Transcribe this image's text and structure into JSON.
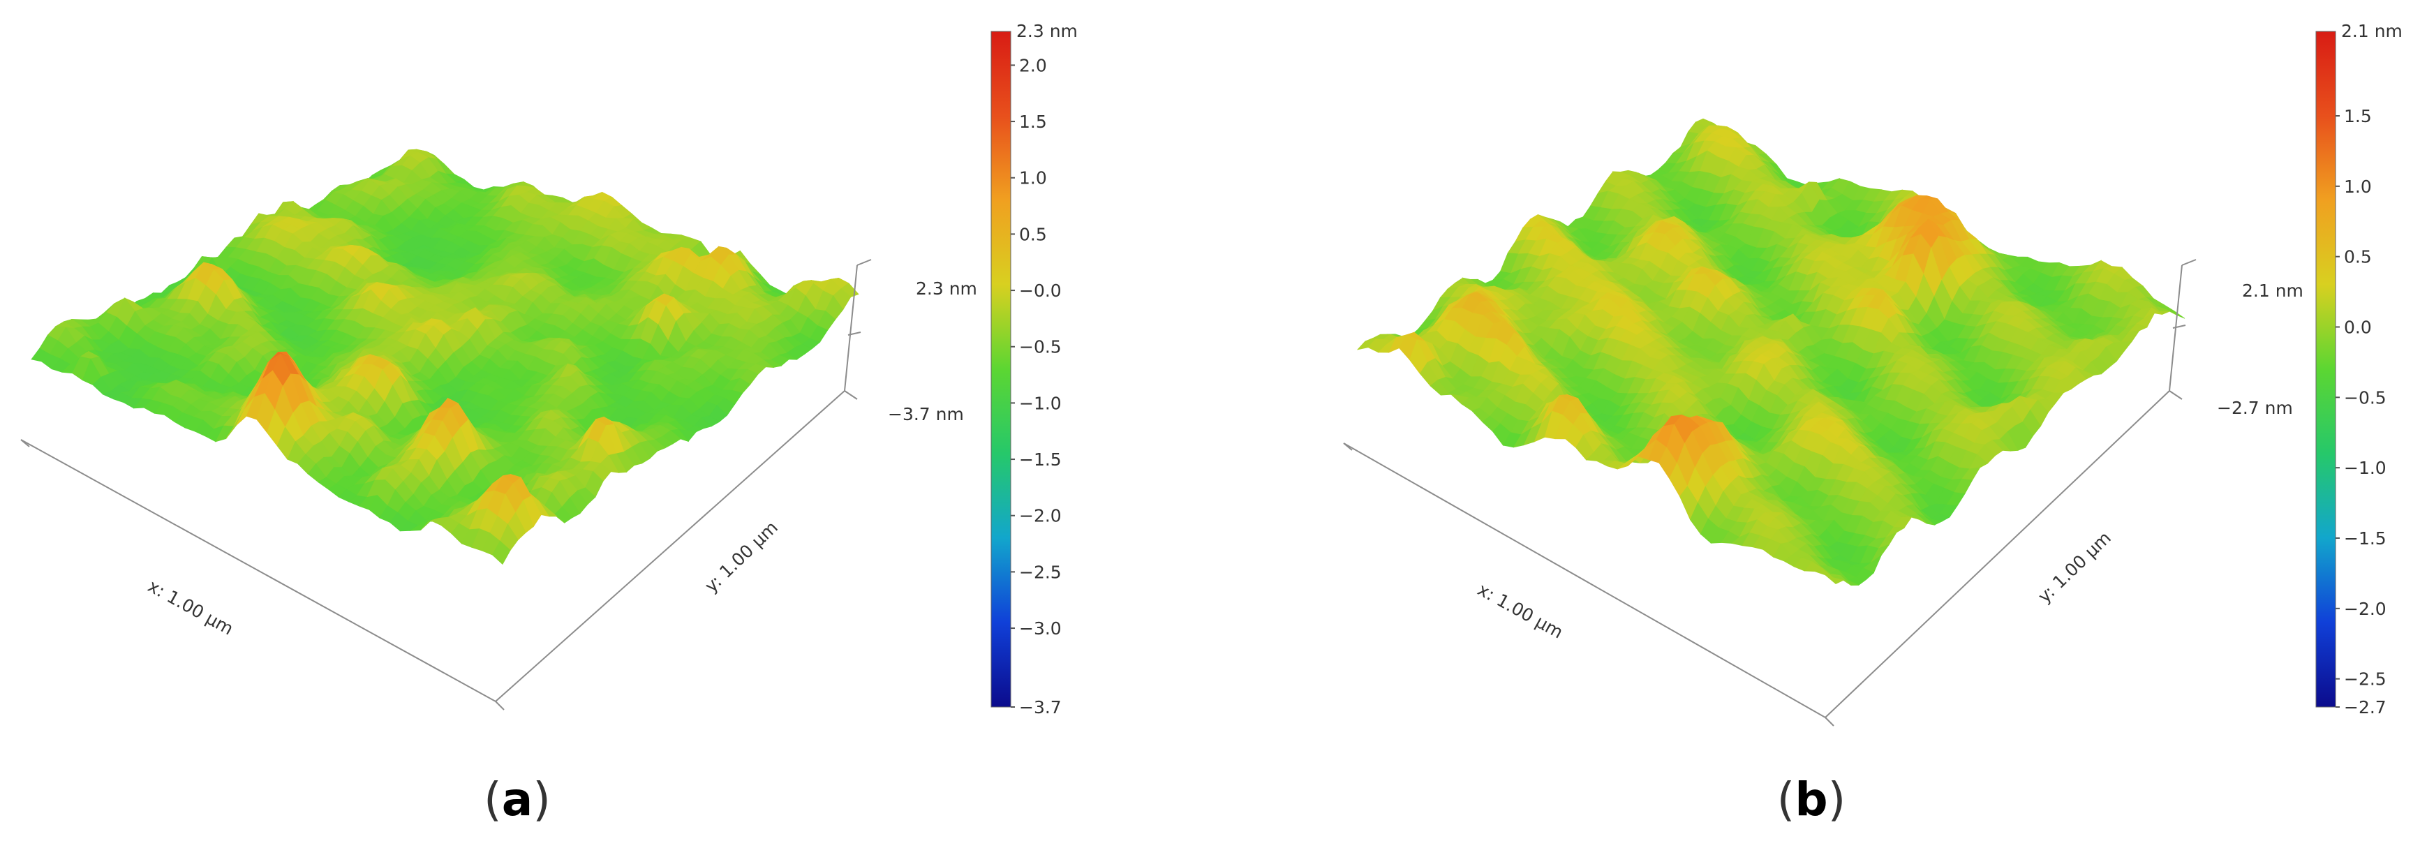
{
  "panels": [
    {
      "id": "a",
      "caption_letter": "a",
      "x_axis_label": "x: 1.00 µm",
      "y_axis_label": "y: 1.00 µm",
      "z_top_label": "2.3 nm",
      "z_bottom_label": "−3.7 nm",
      "colorbar": {
        "min": -3.7,
        "max": 2.3,
        "top_label": "2.3 nm",
        "ticks": [
          {
            "value": 2.0,
            "label": "2.0"
          },
          {
            "value": 1.5,
            "label": "1.5"
          },
          {
            "value": 1.0,
            "label": "1.0"
          },
          {
            "value": 0.5,
            "label": "0.5"
          },
          {
            "value": 0.0,
            "label": "−0.0"
          },
          {
            "value": -0.5,
            "label": "−0.5"
          },
          {
            "value": -1.0,
            "label": "−1.0"
          },
          {
            "value": -1.5,
            "label": "−1.5"
          },
          {
            "value": -2.0,
            "label": "−2.0"
          },
          {
            "value": -2.5,
            "label": "−2.5"
          },
          {
            "value": -3.0,
            "label": "−3.0"
          },
          {
            "value": -3.7,
            "label": "−3.7"
          }
        ]
      }
    },
    {
      "id": "b",
      "caption_letter": "b",
      "x_axis_label": "x: 1.00 µm",
      "y_axis_label": "y: 1.00 µm",
      "z_top_label": "2.1 nm",
      "z_bottom_label": "−2.7 nm",
      "colorbar": {
        "min": -2.7,
        "max": 2.1,
        "top_label": "2.1 nm",
        "ticks": [
          {
            "value": 1.5,
            "label": "1.5"
          },
          {
            "value": 1.0,
            "label": "1.0"
          },
          {
            "value": 0.5,
            "label": "0.5"
          },
          {
            "value": 0.0,
            "label": "0.0"
          },
          {
            "value": -0.5,
            "label": "−0.5"
          },
          {
            "value": -1.0,
            "label": "−1.0"
          },
          {
            "value": -1.5,
            "label": "−1.5"
          },
          {
            "value": -2.0,
            "label": "−2.0"
          },
          {
            "value": -2.5,
            "label": "−2.5"
          },
          {
            "value": -2.7,
            "label": "−2.7"
          }
        ]
      }
    }
  ],
  "colormap": [
    "#0b0b8c",
    "#1040d8",
    "#12a6cc",
    "#26c86a",
    "#5cd632",
    "#d8d020",
    "#f0a020",
    "#e8501c",
    "#d81c14"
  ]
}
